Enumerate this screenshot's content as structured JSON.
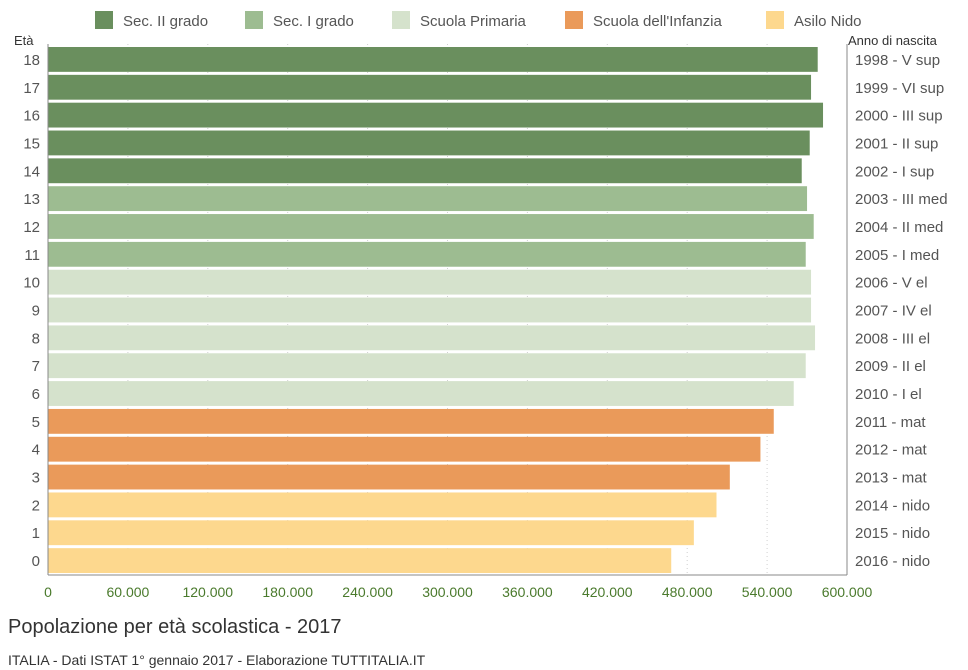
{
  "chart_data": {
    "type": "bar",
    "orientation": "horizontal",
    "title": "Popolazione per età scolastica - 2017",
    "source": "ITALIA - Dati ISTAT 1° gennaio 2017 - Elaborazione TUTTITALIA.IT",
    "left_axis_title": "Età",
    "right_axis_title": "Anno di nascita",
    "legend": [
      {
        "name": "Sec. II grado",
        "color": "#6a8f5e"
      },
      {
        "name": "Sec. I grado",
        "color": "#9dbc91"
      },
      {
        "name": "Scuola Primaria",
        "color": "#d5e2cc"
      },
      {
        "name": "Scuola dell'Infanzia",
        "color": "#ea9a5a"
      },
      {
        "name": "Asilo Nido",
        "color": "#fdd88e"
      }
    ],
    "legend_position": "top",
    "xlim": [
      0,
      600000
    ],
    "x_ticks": [
      "0",
      "60.000",
      "120.000",
      "180.000",
      "240.000",
      "300.000",
      "360.000",
      "420.000",
      "480.000",
      "540.000",
      "600.000"
    ],
    "x_tick_values": [
      0,
      60000,
      120000,
      180000,
      240000,
      300000,
      360000,
      420000,
      480000,
      540000,
      600000
    ],
    "grid": true,
    "bars": [
      {
        "age": "18",
        "birth": "1998 - V sup",
        "value": 578000,
        "group": 0
      },
      {
        "age": "17",
        "birth": "1999 - VI sup",
        "value": 573000,
        "group": 0
      },
      {
        "age": "16",
        "birth": "2000 - III sup",
        "value": 582000,
        "group": 0
      },
      {
        "age": "15",
        "birth": "2001 - II sup",
        "value": 572000,
        "group": 0
      },
      {
        "age": "14",
        "birth": "2002 - I sup",
        "value": 566000,
        "group": 0
      },
      {
        "age": "13",
        "birth": "2003 - III med",
        "value": 570000,
        "group": 1
      },
      {
        "age": "12",
        "birth": "2004 - II med",
        "value": 575000,
        "group": 1
      },
      {
        "age": "11",
        "birth": "2005 - I med",
        "value": 569000,
        "group": 1
      },
      {
        "age": "10",
        "birth": "2006 - V el",
        "value": 573000,
        "group": 2
      },
      {
        "age": "9",
        "birth": "2007 - IV el",
        "value": 573000,
        "group": 2
      },
      {
        "age": "8",
        "birth": "2008 - III el",
        "value": 576000,
        "group": 2
      },
      {
        "age": "7",
        "birth": "2009 - II el",
        "value": 569000,
        "group": 2
      },
      {
        "age": "6",
        "birth": "2010 - I el",
        "value": 560000,
        "group": 2
      },
      {
        "age": "5",
        "birth": "2011 - mat",
        "value": 545000,
        "group": 3
      },
      {
        "age": "4",
        "birth": "2012 - mat",
        "value": 535000,
        "group": 3
      },
      {
        "age": "3",
        "birth": "2013 - mat",
        "value": 512000,
        "group": 3
      },
      {
        "age": "2",
        "birth": "2014 - nido",
        "value": 502000,
        "group": 4
      },
      {
        "age": "1",
        "birth": "2015 - nido",
        "value": 485000,
        "group": 4
      },
      {
        "age": "0",
        "birth": "2016 - nido",
        "value": 468000,
        "group": 4
      }
    ]
  }
}
